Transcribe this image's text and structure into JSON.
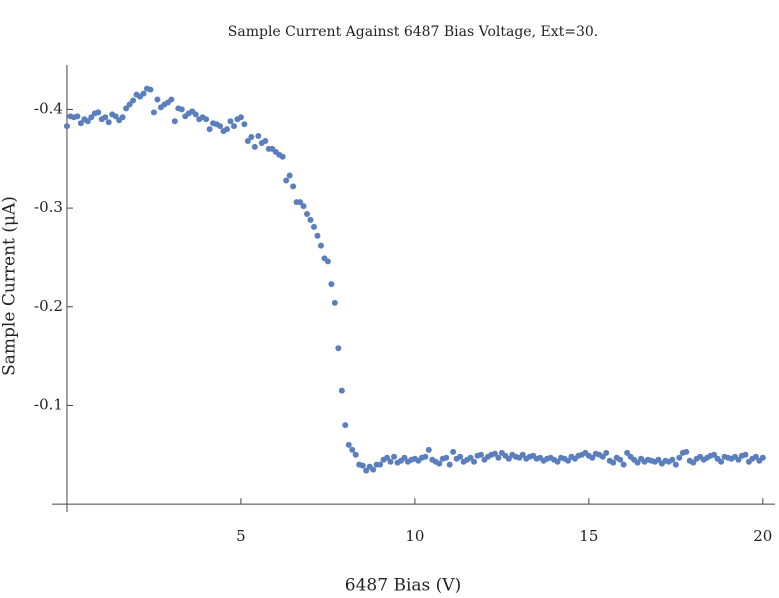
{
  "chart_data": {
    "type": "scatter",
    "title": "Sample Current Against 6487 Bias Voltage, Ext=30.",
    "x_label": "6487 Bias (V)",
    "y_label": "Sample Current (μA)",
    "color": "#5b7fbd",
    "xlim": [
      -0.43,
      20.35
    ],
    "ylim": [
      0.01,
      -0.445
    ],
    "xticks": [
      5,
      10,
      15,
      20
    ],
    "yticks": [
      -0.4,
      -0.3,
      -0.2,
      -0.1
    ],
    "x": [
      0,
      0.1,
      0.2,
      0.3,
      0.4,
      0.5,
      0.6,
      0.7,
      0.8,
      0.9,
      1,
      1.1,
      1.2,
      1.3,
      1.4,
      1.5,
      1.6,
      1.7,
      1.8,
      1.9,
      2,
      2.1,
      2.2,
      2.3,
      2.4,
      2.5,
      2.6,
      2.7,
      2.8,
      2.9,
      3,
      3.1,
      3.2,
      3.3,
      3.4,
      3.5,
      3.6,
      3.7,
      3.8,
      3.9,
      4,
      4.1,
      4.2,
      4.3,
      4.4,
      4.5,
      4.6,
      4.7,
      4.8,
      4.9,
      5,
      5.1,
      5.2,
      5.3,
      5.4,
      5.5,
      5.6,
      5.7,
      5.8,
      5.9,
      6,
      6.1,
      6.2,
      6.3,
      6.4,
      6.5,
      6.6,
      6.7,
      6.8,
      6.9,
      7,
      7.1,
      7.2,
      7.3,
      7.4,
      7.5,
      7.6,
      7.7,
      7.8,
      7.9,
      8,
      8.1,
      8.2,
      8.3,
      8.4,
      8.5,
      8.6,
      8.7,
      8.8,
      8.9,
      9,
      9.1,
      9.2,
      9.3,
      9.4,
      9.5,
      9.6,
      9.7,
      9.8,
      9.9,
      10,
      10.1,
      10.2,
      10.3,
      10.4,
      10.5,
      10.6,
      10.7,
      10.8,
      10.9,
      11,
      11.1,
      11.2,
      11.3,
      11.4,
      11.5,
      11.6,
      11.7,
      11.8,
      11.9,
      12,
      12.1,
      12.2,
      12.3,
      12.4,
      12.5,
      12.6,
      12.7,
      12.8,
      12.9,
      13,
      13.1,
      13.2,
      13.3,
      13.4,
      13.5,
      13.6,
      13.7,
      13.8,
      13.9,
      14,
      14.1,
      14.2,
      14.3,
      14.4,
      14.5,
      14.6,
      14.7,
      14.8,
      14.9,
      15,
      15.1,
      15.2,
      15.3,
      15.4,
      15.5,
      15.6,
      15.7,
      15.8,
      15.9,
      16,
      16.1,
      16.2,
      16.3,
      16.4,
      16.5,
      16.6,
      16.7,
      16.8,
      16.9,
      17,
      17.1,
      17.2,
      17.3,
      17.4,
      17.5,
      17.6,
      17.7,
      17.8,
      17.9,
      18,
      18.1,
      18.2,
      18.3,
      18.4,
      18.5,
      18.6,
      18.7,
      18.8,
      18.9,
      19,
      19.1,
      19.2,
      19.3,
      19.4,
      19.5,
      19.6,
      19.7,
      19.8,
      19.9,
      20
    ],
    "values": [
      -0.383,
      -0.393,
      -0.392,
      -0.393,
      -0.386,
      -0.39,
      -0.388,
      -0.392,
      -0.396,
      -0.397,
      -0.39,
      -0.392,
      -0.387,
      -0.395,
      -0.393,
      -0.389,
      -0.392,
      -0.401,
      -0.405,
      -0.409,
      -0.415,
      -0.413,
      -0.416,
      -0.421,
      -0.42,
      -0.397,
      -0.41,
      -0.402,
      -0.405,
      -0.407,
      -0.41,
      -0.388,
      -0.401,
      -0.4,
      -0.393,
      -0.396,
      -0.398,
      -0.395,
      -0.39,
      -0.392,
      -0.39,
      -0.38,
      -0.386,
      -0.385,
      -0.383,
      -0.378,
      -0.38,
      -0.388,
      -0.383,
      -0.39,
      -0.392,
      -0.385,
      -0.368,
      -0.372,
      -0.362,
      -0.373,
      -0.366,
      -0.368,
      -0.36,
      -0.36,
      -0.357,
      -0.354,
      -0.352,
      -0.328,
      -0.333,
      -0.322,
      -0.306,
      -0.306,
      -0.302,
      -0.294,
      -0.288,
      -0.281,
      -0.272,
      -0.262,
      -0.249,
      -0.246,
      -0.223,
      -0.204,
      -0.158,
      -0.115,
      -0.08,
      -0.06,
      -0.055,
      -0.05,
      -0.04,
      -0.039,
      -0.034,
      -0.038,
      -0.035,
      -0.04,
      -0.04,
      -0.045,
      -0.047,
      -0.043,
      -0.048,
      -0.042,
      -0.044,
      -0.047,
      -0.043,
      -0.045,
      -0.046,
      -0.044,
      -0.047,
      -0.048,
      -0.055,
      -0.045,
      -0.043,
      -0.041,
      -0.046,
      -0.047,
      -0.04,
      -0.053,
      -0.046,
      -0.048,
      -0.043,
      -0.045,
      -0.047,
      -0.043,
      -0.049,
      -0.05,
      -0.045,
      -0.048,
      -0.05,
      -0.051,
      -0.047,
      -0.052,
      -0.049,
      -0.046,
      -0.05,
      -0.048,
      -0.047,
      -0.05,
      -0.046,
      -0.048,
      -0.049,
      -0.046,
      -0.047,
      -0.044,
      -0.046,
      -0.047,
      -0.045,
      -0.043,
      -0.047,
      -0.046,
      -0.044,
      -0.048,
      -0.046,
      -0.049,
      -0.05,
      -0.052,
      -0.049,
      -0.047,
      -0.051,
      -0.05,
      -0.048,
      -0.052,
      -0.044,
      -0.042,
      -0.047,
      -0.045,
      -0.04,
      -0.052,
      -0.048,
      -0.045,
      -0.042,
      -0.046,
      -0.043,
      -0.045,
      -0.044,
      -0.043,
      -0.045,
      -0.041,
      -0.044,
      -0.043,
      -0.045,
      -0.04,
      -0.047,
      -0.052,
      -0.053,
      -0.044,
      -0.042,
      -0.046,
      -0.048,
      -0.045,
      -0.047,
      -0.049,
      -0.05,
      -0.046,
      -0.043,
      -0.048,
      -0.047,
      -0.046,
      -0.048,
      -0.045,
      -0.049,
      -0.05,
      -0.043,
      -0.046,
      -0.048,
      -0.044,
      -0.047
    ]
  }
}
